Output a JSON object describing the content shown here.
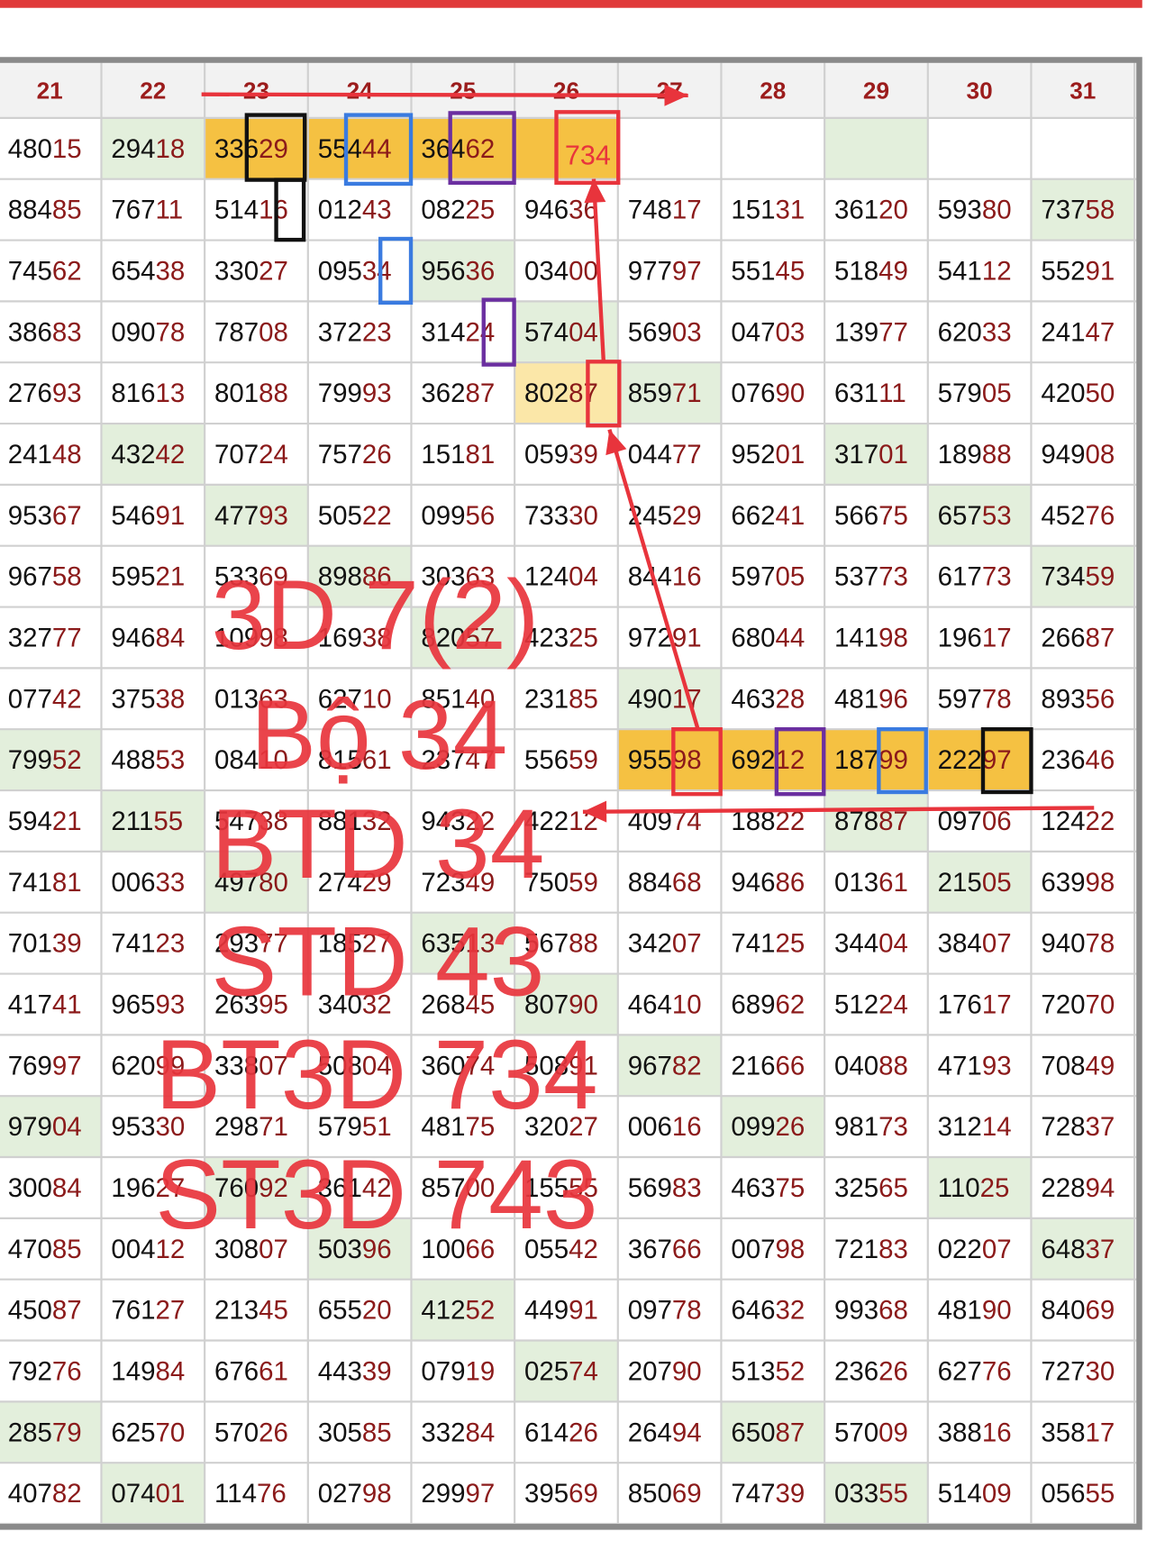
{
  "header": {
    "columns": [
      "21",
      "22",
      "23",
      "24",
      "25",
      "26",
      "27",
      "28",
      "29",
      "30",
      "31"
    ]
  },
  "table": {
    "rows": [
      [
        "48015",
        "29418",
        "33629",
        "55444",
        "36462",
        null,
        null,
        null,
        null,
        null,
        null
      ],
      [
        "88485",
        "76711",
        "51416",
        "01243",
        "08225",
        "94636",
        "74817",
        "15131",
        "36120",
        "59380",
        "73758"
      ],
      [
        "74562",
        "65438",
        "33027",
        "09534",
        "95636",
        "03400",
        "97797",
        "55145",
        "51849",
        "54112",
        "55291"
      ],
      [
        "38683",
        "09078",
        "78708",
        "37223",
        "31424",
        "57404",
        "56903",
        "04703",
        "13977",
        "62033",
        "24147"
      ],
      [
        "27693",
        "81613",
        "80188",
        "79993",
        "36287",
        "80287",
        "85971",
        "07690",
        "63111",
        "57905",
        "42050"
      ],
      [
        "24148",
        "43242",
        "70724",
        "75726",
        "15181",
        "05939",
        "04477",
        "95201",
        "31701",
        "18988",
        "94908"
      ],
      [
        "95367",
        "54691",
        "47793",
        "50522",
        "09956",
        "73330",
        "24529",
        "66241",
        "56675",
        "65753",
        "45276"
      ],
      [
        "96758",
        "59521",
        "53369",
        "89886",
        "30363",
        "12404",
        "84416",
        "59705",
        "53773",
        "61773",
        "73459"
      ],
      [
        "32777",
        "94684",
        "10998",
        "16938",
        "82057",
        "42325",
        "97291",
        "68044",
        "14198",
        "19617",
        "26687"
      ],
      [
        "07742",
        "37538",
        "01363",
        "62710",
        "85140",
        "23185",
        "49017",
        "46328",
        "48196",
        "59778",
        "89356"
      ],
      [
        "79952",
        "48853",
        "08410",
        "81561",
        "23747",
        "55659",
        "95598",
        "69212",
        "18799",
        "22297",
        "23646"
      ],
      [
        "59421",
        "21155",
        "54738",
        "88132",
        "94322",
        "42212",
        "40974",
        "18822",
        "87887",
        "09706",
        "12422"
      ],
      [
        "74181",
        "00633",
        "49780",
        "27429",
        "72349",
        "75059",
        "88468",
        "94686",
        "01361",
        "21505",
        "63998"
      ],
      [
        "70139",
        "74123",
        "29377",
        "18527",
        "63513",
        "56788",
        "34207",
        "74125",
        "34404",
        "38407",
        "94078"
      ],
      [
        "41741",
        "96593",
        "26395",
        "34032",
        "26845",
        "80790",
        "46410",
        "68962",
        "51224",
        "17617",
        "72070"
      ],
      [
        "76997",
        "62099",
        "33807",
        "50804",
        "36074",
        "50891",
        "96782",
        "21666",
        "04088",
        "47193",
        "70849"
      ],
      [
        "97904",
        "95330",
        "29871",
        "57951",
        "48175",
        "32027",
        "00616",
        "09926",
        "98173",
        "31214",
        "72837"
      ],
      [
        "30084",
        "19627",
        "76092",
        "36142",
        "85700",
        "15555",
        "56983",
        "46375",
        "32565",
        "11025",
        "22894"
      ],
      [
        "47085",
        "00412",
        "30807",
        "50396",
        "10066",
        "05542",
        "36766",
        "00798",
        "72183",
        "02207",
        "64837"
      ],
      [
        "45087",
        "76127",
        "21345",
        "65520",
        "41252",
        "44991",
        "09778",
        "64632",
        "99368",
        "48190",
        "84069"
      ],
      [
        "79276",
        "14984",
        "67661",
        "44339",
        "07919",
        "02574",
        "20790",
        "51352",
        "23626",
        "62776",
        "72730"
      ],
      [
        "28579",
        "62570",
        "57026",
        "30585",
        "33284",
        "61426",
        "26494",
        "65087",
        "57009",
        "38816",
        "35817"
      ],
      [
        "40782",
        "07401",
        "11476",
        "02798",
        "29997",
        "39569",
        "85069",
        "74739",
        "03355",
        "51409",
        "05655"
      ]
    ]
  },
  "annotations": {
    "cell_note": "734",
    "lines": [
      "3D 7(2)",
      "Bộ 34",
      "BTD 34",
      "STD 43",
      "BT3D 734",
      "ST3D 743"
    ]
  }
}
